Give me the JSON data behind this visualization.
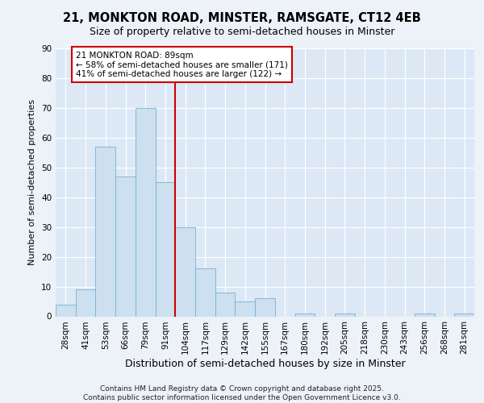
{
  "title_line1": "21, MONKTON ROAD, MINSTER, RAMSGATE, CT12 4EB",
  "title_line2": "Size of property relative to semi-detached houses in Minster",
  "xlabel": "Distribution of semi-detached houses by size in Minster",
  "ylabel": "Number of semi-detached properties",
  "bins": [
    "28sqm",
    "41sqm",
    "53sqm",
    "66sqm",
    "79sqm",
    "91sqm",
    "104sqm",
    "117sqm",
    "129sqm",
    "142sqm",
    "155sqm",
    "167sqm",
    "180sqm",
    "192sqm",
    "205sqm",
    "218sqm",
    "230sqm",
    "243sqm",
    "256sqm",
    "268sqm",
    "281sqm"
  ],
  "values": [
    4,
    9,
    57,
    47,
    70,
    45,
    30,
    16,
    8,
    5,
    6,
    0,
    1,
    0,
    1,
    0,
    0,
    0,
    1,
    0,
    1
  ],
  "bar_color": "#cce0f0",
  "bar_edge_color": "#7ab0d4",
  "vline_color": "#cc0000",
  "vline_pos": 5.5,
  "annotation_text": "21 MONKTON ROAD: 89sqm\n← 58% of semi-detached houses are smaller (171)\n41% of semi-detached houses are larger (122) →",
  "ylim": [
    0,
    90
  ],
  "yticks": [
    0,
    10,
    20,
    30,
    40,
    50,
    60,
    70,
    80,
    90
  ],
  "footer": "Contains HM Land Registry data © Crown copyright and database right 2025.\nContains public sector information licensed under the Open Government Licence v3.0.",
  "fig_bg": "#edf2f8",
  "plot_bg": "#dce8f5",
  "grid_color": "#ffffff",
  "title1_fontsize": 10.5,
  "title2_fontsize": 9,
  "ylabel_fontsize": 8,
  "xlabel_fontsize": 9,
  "tick_fontsize": 7.5,
  "annot_fontsize": 7.5,
  "footer_fontsize": 6.5
}
